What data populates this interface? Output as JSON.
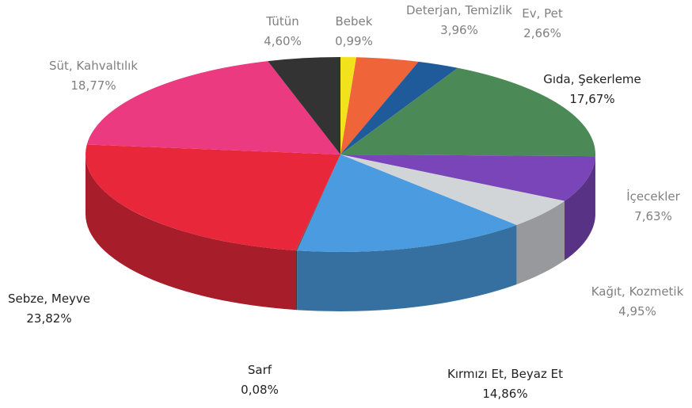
{
  "chart_data": {
    "type": "pie3d",
    "categories": [
      "Bebek",
      "Deterjan, Temizlik",
      "Ev, Pet",
      "Gıda, Şekerleme",
      "İçecekler",
      "Kağıt, Kozmetik",
      "Kırmızı Et, Beyaz Et",
      "Sarf",
      "Sebze, Meyve",
      "Süt, Kahvaltılık",
      "Tütün"
    ],
    "values": [
      0.99,
      3.96,
      2.66,
      17.67,
      7.63,
      4.95,
      14.86,
      0.08,
      23.82,
      18.77,
      4.6
    ],
    "value_labels": [
      "0,99%",
      "3,96%",
      "2,66%",
      "17,67%",
      "7,63%",
      "4,95%",
      "14,86%",
      "0,08%",
      "23,82%",
      "18,77%",
      "4,60%"
    ],
    "colors": [
      "#f2e21c",
      "#f0643a",
      "#1f5a9a",
      "#4b8a56",
      "#7a45b8",
      "#d2d5d8",
      "#4a9be0",
      "#555555",
      "#e8283a",
      "#ec3a80",
      "#333333"
    ]
  }
}
